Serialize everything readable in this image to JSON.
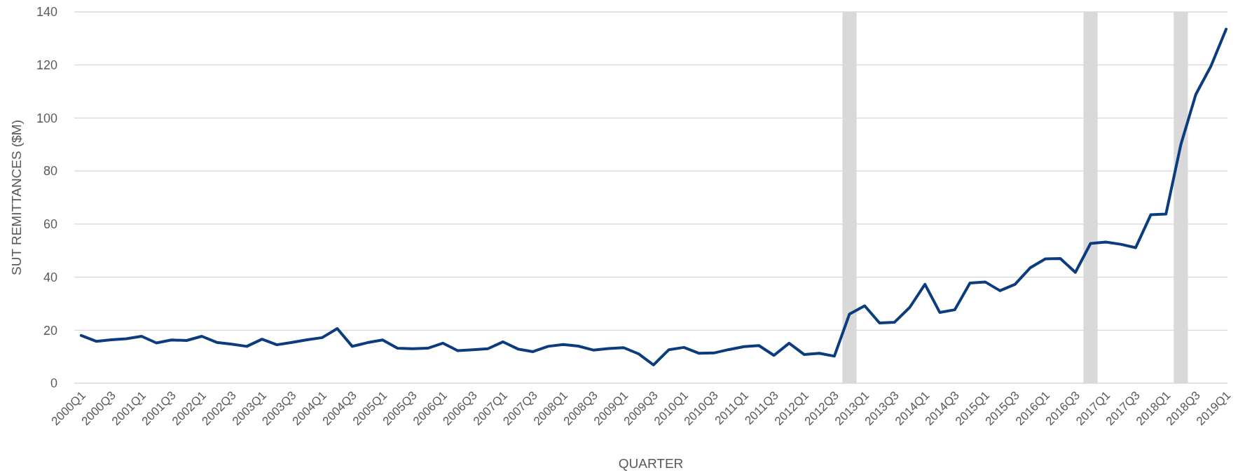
{
  "chart_data": {
    "type": "line",
    "xlabel": "QUARTER",
    "ylabel": "SUT REMITTANCES ($M)",
    "x": [
      "2000-01",
      "2000-04",
      "2000-07",
      "2000-10",
      "2001-01",
      "2001-04",
      "2001-07",
      "2001-10",
      "2002-01",
      "2002-04",
      "2002-07",
      "2002-10",
      "2003-01",
      "2003-04",
      "2003-07",
      "2003-10",
      "2004-01",
      "2004-04",
      "2004-07",
      "2004-10",
      "2005-01",
      "2005-04",
      "2005-07",
      "2005-10",
      "2006-01",
      "2006-04",
      "2006-07",
      "2006-10",
      "2007-01",
      "2007-04",
      "2007-07",
      "2007-10",
      "2008-01",
      "2008-04",
      "2008-07",
      "2008-10",
      "2009-01",
      "2009-04",
      "2009-07",
      "2009-10",
      "2010-01",
      "2010-04",
      "2010-07",
      "2010-10",
      "2011-01",
      "2011-04",
      "2011-07",
      "2011-10",
      "2012-01",
      "2012-04",
      "2012-07",
      "2012-10",
      "2013-01",
      "2013-04",
      "2013-07",
      "2013-10",
      "2014-01",
      "2014-04",
      "2014-07",
      "2014-10",
      "2015-01",
      "2015-04",
      "2015-07",
      "2015-10",
      "2016-01",
      "2016-04",
      "2016-07",
      "2016-10",
      "2017-01",
      "2017-04",
      "2017-07",
      "2017-10",
      "2018-01",
      "2018-04",
      "2018-07",
      "2018-10",
      "2019-01"
    ],
    "series": [
      {
        "color": "#0b3c7d",
        "values": [
          18.0,
          15.8,
          16.4,
          16.8,
          17.7,
          15.2,
          16.3,
          16.1,
          17.7,
          15.4,
          14.7,
          13.9,
          16.6,
          14.5,
          15.4,
          16.4,
          17.2,
          20.6,
          13.9,
          15.3,
          16.3,
          13.2,
          13.0,
          13.2,
          15.1,
          12.3,
          12.6,
          13.0,
          15.6,
          12.9,
          11.9,
          13.9,
          14.6,
          14.0,
          12.5,
          13.1,
          13.4,
          11.1,
          6.9,
          12.6,
          13.5,
          11.3,
          11.4,
          12.7,
          13.8,
          14.2,
          10.5,
          15.1,
          10.8,
          11.3,
          10.2,
          26.1,
          29.2,
          22.7,
          23.0,
          28.6,
          37.3,
          26.7,
          27.7,
          37.8,
          38.2,
          34.9,
          37.3,
          43.5,
          46.9,
          47.0,
          41.8,
          52.7,
          53.2,
          52.4,
          51.1,
          63.5,
          63.8,
          89.9,
          108.9,
          119.6,
          133.5
        ]
      }
    ],
    "xlim": [
      "1999-11-20",
      "2019-01-09"
    ],
    "xticks": [
      {
        "value": "2000-01",
        "label": "2000Q1"
      },
      {
        "value": "2000-07",
        "label": "2000Q3"
      },
      {
        "value": "2001-01",
        "label": "2001Q1"
      },
      {
        "value": "2001-07",
        "label": "2001Q3"
      },
      {
        "value": "2002-01",
        "label": "2002Q1"
      },
      {
        "value": "2002-07",
        "label": "2002Q3"
      },
      {
        "value": "2003-01",
        "label": "2003Q1"
      },
      {
        "value": "2003-07",
        "label": "2003Q3"
      },
      {
        "value": "2004-01",
        "label": "2004Q1"
      },
      {
        "value": "2004-07",
        "label": "2004Q3"
      },
      {
        "value": "2005-01",
        "label": "2005Q1"
      },
      {
        "value": "2005-07",
        "label": "2005Q3"
      },
      {
        "value": "2006-01",
        "label": "2006Q1"
      },
      {
        "value": "2006-07",
        "label": "2006Q3"
      },
      {
        "value": "2007-01",
        "label": "2007Q1"
      },
      {
        "value": "2007-07",
        "label": "2007Q3"
      },
      {
        "value": "2008-01",
        "label": "2008Q1"
      },
      {
        "value": "2008-07",
        "label": "2008Q3"
      },
      {
        "value": "2009-01",
        "label": "2009Q1"
      },
      {
        "value": "2009-07",
        "label": "2009Q3"
      },
      {
        "value": "2010-01",
        "label": "2010Q1"
      },
      {
        "value": "2010-07",
        "label": "2010Q3"
      },
      {
        "value": "2011-01",
        "label": "2011Q1"
      },
      {
        "value": "2011-07",
        "label": "2011Q3"
      },
      {
        "value": "2012-01",
        "label": "2012Q1"
      },
      {
        "value": "2012-07",
        "label": "2012Q3"
      },
      {
        "value": "2013-01",
        "label": "2013Q1"
      },
      {
        "value": "2013-07",
        "label": "2013Q3"
      },
      {
        "value": "2014-01",
        "label": "2014Q1"
      },
      {
        "value": "2014-07",
        "label": "2014Q3"
      },
      {
        "value": "2015-01",
        "label": "2015Q1"
      },
      {
        "value": "2015-07",
        "label": "2015Q3"
      },
      {
        "value": "2016-01",
        "label": "2016Q1"
      },
      {
        "value": "2016-07",
        "label": "2016Q3"
      },
      {
        "value": "2017-01",
        "label": "2017Q1"
      },
      {
        "value": "2017-07",
        "label": "2017Q3"
      },
      {
        "value": "2018-01",
        "label": "2018Q1"
      },
      {
        "value": "2018-07",
        "label": "2018Q3"
      },
      {
        "value": "2019-01",
        "label": "2019Q1"
      }
    ],
    "ylim": [
      0,
      140
    ],
    "yticks": [
      0,
      20,
      40,
      60,
      80,
      100,
      120,
      140
    ],
    "grid": "y",
    "bands": [
      {
        "axis": "x",
        "from": "2012-08-19",
        "to": "2012-11-13",
        "color": "#d9d9d9"
      },
      {
        "axis": "x",
        "from": "2016-08-19",
        "to": "2016-11-13",
        "color": "#d9d9d9"
      },
      {
        "axis": "x",
        "from": "2018-02-17",
        "to": "2018-05-14",
        "color": "#d9d9d9"
      }
    ]
  }
}
